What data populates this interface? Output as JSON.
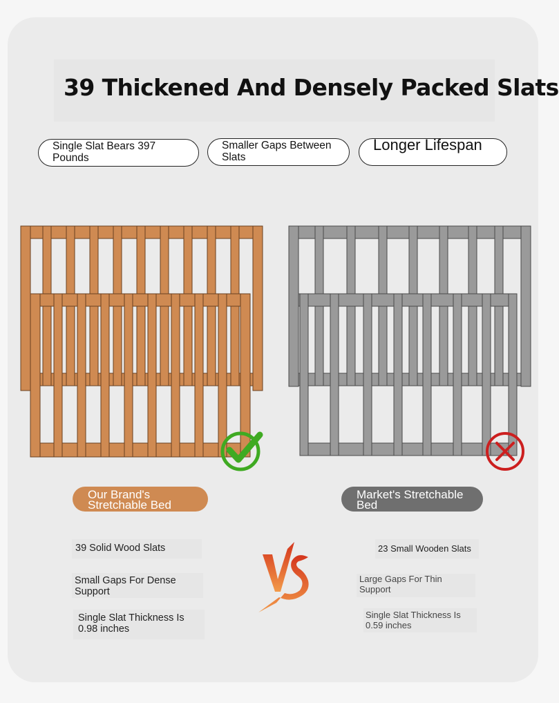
{
  "title": "39 Thickened And Densely Packed Slats",
  "pills": [
    {
      "text": "Single Slat Bears 397 Pounds"
    },
    {
      "text": "Smaller Gaps Between Slats"
    },
    {
      "text": "Longer Lifespan"
    }
  ],
  "left_bed": {
    "label": "Our Brand's Stretchable Bed",
    "color": "#cf8a52",
    "status_icon": "check-icon",
    "features": [
      "39 Solid Wood Slats",
      "Small Gaps For Dense Support",
      "Single Slat Thickness Is 0.98 inches"
    ]
  },
  "right_bed": {
    "label": "Market's Stretchable Bed",
    "color": "#9a9a9a",
    "status_icon": "cross-icon",
    "features": [
      "23 Small Wooden Slats",
      "Large Gaps For Thin Support",
      "Single Slat Thickness Is 0.59 inches"
    ]
  },
  "vs_text": "VS",
  "colors": {
    "check": "#3faa22",
    "cross": "#cc1f1f",
    "vs": "#e2521f"
  }
}
